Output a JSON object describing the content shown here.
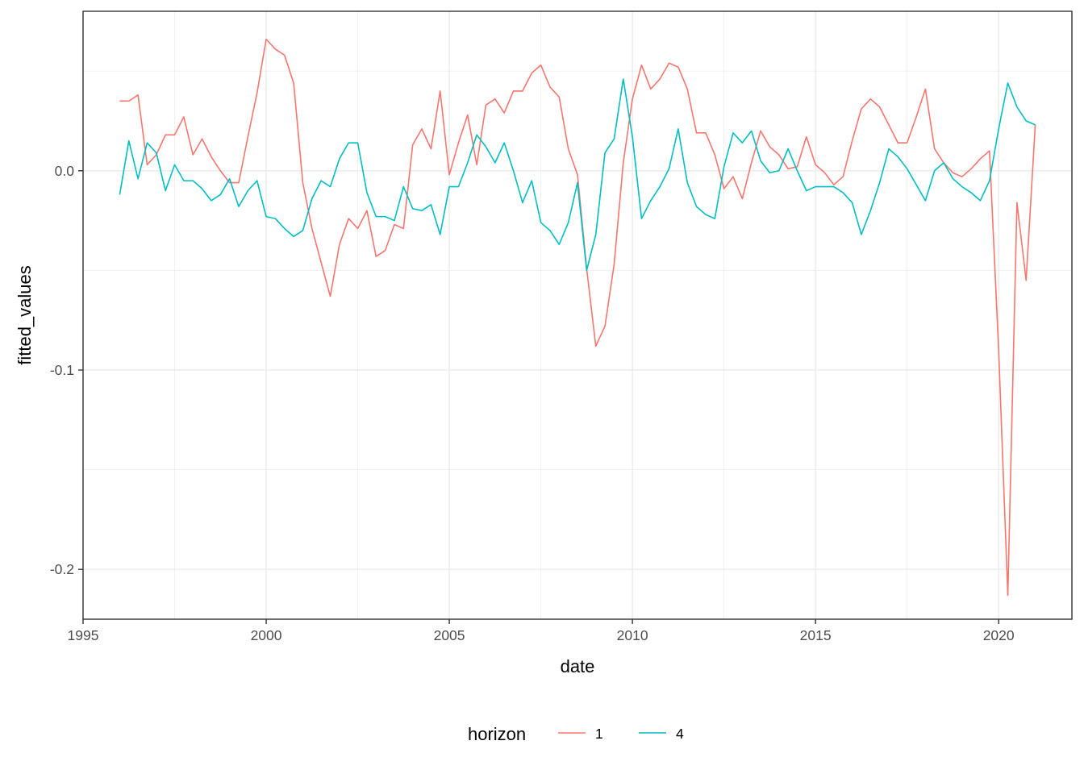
{
  "chart_data": {
    "type": "line",
    "xlabel": "date",
    "ylabel": "fitted_values",
    "xlim": [
      1995,
      2022
    ],
    "ylim": [
      -0.225,
      0.08
    ],
    "x_ticks": [
      1995,
      2000,
      2005,
      2010,
      2015,
      2020
    ],
    "x_tick_labels": [
      "1995",
      "2000",
      "2005",
      "2010",
      "2015",
      "2020"
    ],
    "y_ticks": [
      0.0,
      -0.1,
      -0.2
    ],
    "y_tick_labels": [
      "0.0",
      "-0.1",
      "-0.2"
    ],
    "grid": true,
    "legend": {
      "title": "horizon",
      "position": "bottom"
    },
    "x": [
      1996.0,
      1996.25,
      1996.5,
      1996.75,
      1997.0,
      1997.25,
      1997.5,
      1997.75,
      1998.0,
      1998.25,
      1998.5,
      1998.75,
      1999.0,
      1999.25,
      1999.5,
      1999.75,
      2000.0,
      2000.25,
      2000.5,
      2000.75,
      2001.0,
      2001.25,
      2001.5,
      2001.75,
      2002.0,
      2002.25,
      2002.5,
      2002.75,
      2003.0,
      2003.25,
      2003.5,
      2003.75,
      2004.0,
      2004.25,
      2004.5,
      2004.75,
      2005.0,
      2005.25,
      2005.5,
      2005.75,
      2006.0,
      2006.25,
      2006.5,
      2006.75,
      2007.0,
      2007.25,
      2007.5,
      2007.75,
      2008.0,
      2008.25,
      2008.5,
      2008.75,
      2009.0,
      2009.25,
      2009.5,
      2009.75,
      2010.0,
      2010.25,
      2010.5,
      2010.75,
      2011.0,
      2011.25,
      2011.5,
      2011.75,
      2012.0,
      2012.25,
      2012.5,
      2012.75,
      2013.0,
      2013.25,
      2013.5,
      2013.75,
      2014.0,
      2014.25,
      2014.5,
      2014.75,
      2015.0,
      2015.25,
      2015.5,
      2015.75,
      2016.0,
      2016.25,
      2016.5,
      2016.75,
      2017.0,
      2017.25,
      2017.5,
      2017.75,
      2018.0,
      2018.25,
      2018.5,
      2018.75,
      2019.0,
      2019.25,
      2019.5,
      2019.75,
      2020.0,
      2020.25,
      2020.5,
      2020.75,
      2021.0
    ],
    "series": [
      {
        "name": "1",
        "color": "#f8766d",
        "values": [
          0.035,
          0.035,
          0.038,
          0.003,
          0.008,
          0.018,
          0.018,
          0.027,
          0.008,
          0.016,
          0.007,
          0.0,
          -0.006,
          -0.006,
          0.017,
          0.039,
          0.066,
          0.061,
          0.058,
          0.044,
          -0.006,
          -0.029,
          -0.046,
          -0.063,
          -0.037,
          -0.024,
          -0.029,
          -0.02,
          -0.043,
          -0.04,
          -0.027,
          -0.029,
          0.013,
          0.021,
          0.011,
          0.04,
          -0.002,
          0.014,
          0.028,
          0.003,
          0.033,
          0.036,
          0.029,
          0.04,
          0.04,
          0.049,
          0.053,
          0.042,
          0.037,
          0.011,
          -0.002,
          -0.049,
          -0.088,
          -0.078,
          -0.047,
          0.004,
          0.036,
          0.053,
          0.041,
          0.046,
          0.054,
          0.052,
          0.041,
          0.019,
          0.019,
          0.008,
          -0.009,
          -0.003,
          -0.014,
          0.004,
          0.02,
          0.012,
          0.008,
          0.001,
          0.002,
          0.017,
          0.003,
          -0.001,
          -0.007,
          -0.003,
          0.015,
          0.031,
          0.036,
          0.032,
          0.023,
          0.014,
          0.014,
          0.027,
          0.041,
          0.011,
          0.004,
          -0.001,
          -0.003,
          0.001,
          0.006,
          0.01,
          -0.09,
          -0.213,
          -0.016,
          -0.055,
          0.023
        ]
      },
      {
        "name": "4",
        "color": "#00bfc4",
        "values": [
          -0.012,
          0.015,
          -0.004,
          0.014,
          0.009,
          -0.01,
          0.003,
          -0.005,
          -0.005,
          -0.009,
          -0.015,
          -0.012,
          -0.004,
          -0.018,
          -0.01,
          -0.005,
          -0.023,
          -0.024,
          -0.029,
          -0.033,
          -0.03,
          -0.014,
          -0.005,
          -0.008,
          0.006,
          0.014,
          0.014,
          -0.011,
          -0.023,
          -0.023,
          -0.025,
          -0.008,
          -0.019,
          -0.02,
          -0.017,
          -0.032,
          -0.008,
          -0.008,
          0.004,
          0.018,
          0.012,
          0.004,
          0.014,
          0.0,
          -0.016,
          -0.005,
          -0.026,
          -0.03,
          -0.037,
          -0.026,
          -0.006,
          -0.05,
          -0.032,
          0.009,
          0.016,
          0.046,
          0.017,
          -0.024,
          -0.015,
          -0.008,
          0.001,
          0.021,
          -0.006,
          -0.018,
          -0.022,
          -0.024,
          0.002,
          0.019,
          0.014,
          0.02,
          0.005,
          -0.001,
          0.0,
          0.011,
          0.0,
          -0.01,
          -0.008,
          -0.008,
          -0.008,
          -0.011,
          -0.016,
          -0.032,
          -0.02,
          -0.006,
          0.011,
          0.007,
          0.001,
          -0.007,
          -0.015,
          0.0,
          0.004,
          -0.004,
          -0.008,
          -0.011,
          -0.015,
          -0.005,
          0.021,
          0.044,
          0.032,
          0.025,
          0.023
        ]
      }
    ]
  }
}
